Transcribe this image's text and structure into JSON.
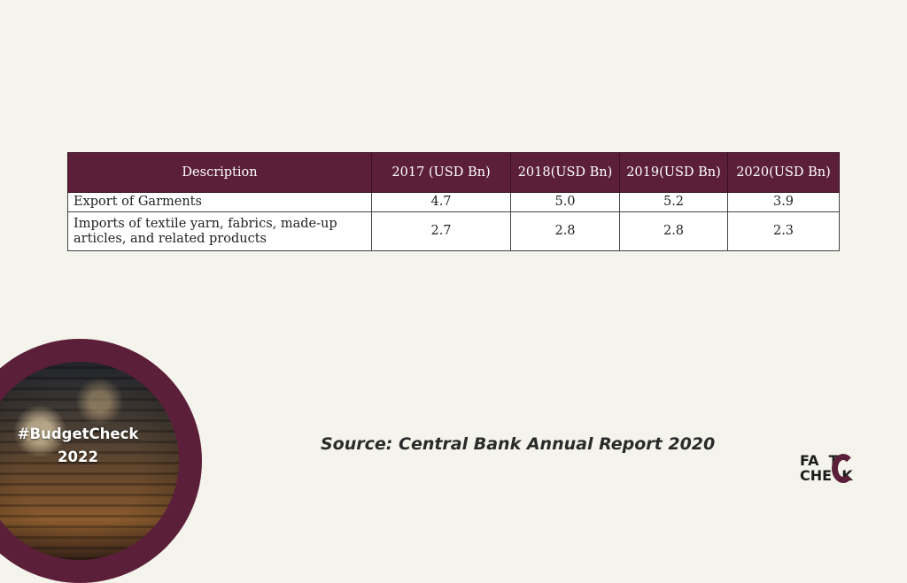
{
  "table": {
    "headers": [
      "Description",
      "2017 (USD Bn)",
      "2018(USD Bn)",
      "2019(USD Bn)",
      "2020(USD Bn)"
    ],
    "rows": [
      [
        "Export of Garments",
        "4.7",
        "5.0",
        "5.2",
        "3.9"
      ],
      [
        "Imports of textile yarn, fabrics, made-up articles, and related products",
        "2.7",
        "2.8",
        "2.8",
        "2.3"
      ]
    ]
  },
  "badge": {
    "line1": "#BudgetCheck",
    "line2": "2022"
  },
  "source": "Source: Central Bank Annual Report 2020",
  "logo": {
    "line1": "FA  T",
    "line2": "CHE  K"
  },
  "colors": {
    "accent": "#5c1f3a",
    "background": "#f4f4ec"
  }
}
